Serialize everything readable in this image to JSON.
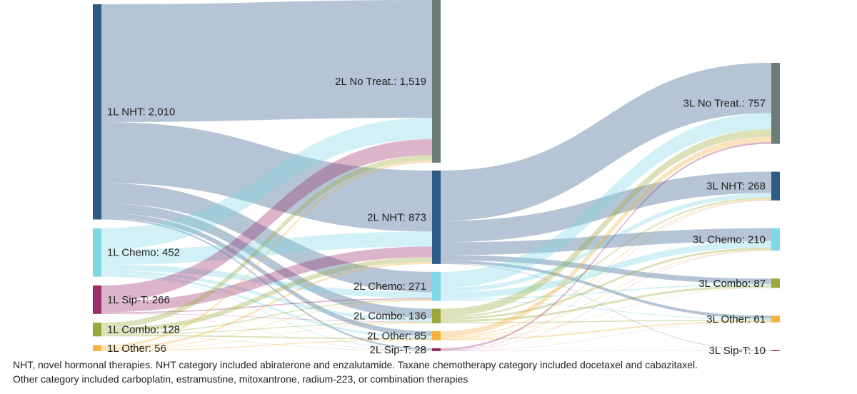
{
  "chart_data": {
    "type": "sankey",
    "stages": [
      [
        {
          "label": "1L NHT: 2,010",
          "value": 2010,
          "color": "#2e5a87"
        },
        {
          "label": "1L Chemo: 452",
          "value": 452,
          "color": "#7fd8e6"
        },
        {
          "label": "1L Sip-T: 266",
          "value": 266,
          "color": "#9c2a6b"
        },
        {
          "label": "1L Combo: 128",
          "value": 128,
          "color": "#9aa83a"
        },
        {
          "label": "1L Other: 56",
          "value": 56,
          "color": "#f3b33d"
        }
      ],
      [
        {
          "label": "2L No Treat.: 1,519",
          "value": 1519,
          "color": "#6d7b79"
        },
        {
          "label": "2L NHT: 873",
          "value": 873,
          "color": "#2e5a87"
        },
        {
          "label": "2L Chemo: 271",
          "value": 271,
          "color": "#7fd8e6"
        },
        {
          "label": "2L Combo: 136",
          "value": 136,
          "color": "#9aa83a"
        },
        {
          "label": "2L Other: 85",
          "value": 85,
          "color": "#f3b33d"
        },
        {
          "label": "2L Sip-T: 28",
          "value": 28,
          "color": "#9c2a6b"
        }
      ],
      [
        {
          "label": "3L No Treat.: 757",
          "value": 757,
          "color": "#6d7b79"
        },
        {
          "label": "3L NHT: 268",
          "value": 268,
          "color": "#2e5a87"
        },
        {
          "label": "3L Chemo: 210",
          "value": 210,
          "color": "#7fd8e6"
        },
        {
          "label": "3L Combo: 87",
          "value": 87,
          "color": "#9aa83a"
        },
        {
          "label": "3L Other: 61",
          "value": 61,
          "color": "#f3b33d"
        },
        {
          "label": "3L Sip-T: 10",
          "value": 10,
          "color": "#9c2a6b"
        }
      ]
    ],
    "flows": [
      [
        {
          "from": 0,
          "to": 0,
          "value": 1100
        },
        {
          "from": 0,
          "to": 1,
          "value": 570
        },
        {
          "from": 0,
          "to": 2,
          "value": 190
        },
        {
          "from": 0,
          "to": 3,
          "value": 90
        },
        {
          "from": 0,
          "to": 4,
          "value": 45
        },
        {
          "from": 0,
          "to": 5,
          "value": 15
        },
        {
          "from": 1,
          "to": 0,
          "value": 200
        },
        {
          "from": 1,
          "to": 1,
          "value": 140
        },
        {
          "from": 1,
          "to": 2,
          "value": 55
        },
        {
          "from": 1,
          "to": 3,
          "value": 30
        },
        {
          "from": 1,
          "to": 4,
          "value": 20
        },
        {
          "from": 1,
          "to": 5,
          "value": 7
        },
        {
          "from": 2,
          "to": 0,
          "value": 150
        },
        {
          "from": 2,
          "to": 1,
          "value": 100
        },
        {
          "from": 2,
          "to": 2,
          "value": 10
        },
        {
          "from": 2,
          "to": 3,
          "value": 4
        },
        {
          "from": 2,
          "to": 5,
          "value": 2
        },
        {
          "from": 3,
          "to": 0,
          "value": 50
        },
        {
          "from": 3,
          "to": 1,
          "value": 45
        },
        {
          "from": 3,
          "to": 2,
          "value": 10
        },
        {
          "from": 3,
          "to": 3,
          "value": 8
        },
        {
          "from": 3,
          "to": 4,
          "value": 12
        },
        {
          "from": 3,
          "to": 5,
          "value": 3
        },
        {
          "from": 4,
          "to": 0,
          "value": 19
        },
        {
          "from": 4,
          "to": 1,
          "value": 18
        },
        {
          "from": 4,
          "to": 2,
          "value": 6
        },
        {
          "from": 4,
          "to": 3,
          "value": 4
        },
        {
          "from": 4,
          "to": 4,
          "value": 8
        },
        {
          "from": 4,
          "to": 5,
          "value": 1
        }
      ],
      [
        {
          "from": 1,
          "to": 0,
          "value": 470
        },
        {
          "from": 1,
          "to": 1,
          "value": 200
        },
        {
          "from": 1,
          "to": 2,
          "value": 120
        },
        {
          "from": 1,
          "to": 3,
          "value": 50
        },
        {
          "from": 1,
          "to": 4,
          "value": 28
        },
        {
          "from": 1,
          "to": 5,
          "value": 5
        },
        {
          "from": 2,
          "to": 0,
          "value": 150
        },
        {
          "from": 2,
          "to": 1,
          "value": 40
        },
        {
          "from": 2,
          "to": 2,
          "value": 60
        },
        {
          "from": 2,
          "to": 3,
          "value": 12
        },
        {
          "from": 2,
          "to": 4,
          "value": 8
        },
        {
          "from": 2,
          "to": 5,
          "value": 1
        },
        {
          "from": 3,
          "to": 0,
          "value": 70
        },
        {
          "from": 3,
          "to": 1,
          "value": 15
        },
        {
          "from": 3,
          "to": 2,
          "value": 20
        },
        {
          "from": 3,
          "to": 3,
          "value": 20
        },
        {
          "from": 3,
          "to": 4,
          "value": 10
        },
        {
          "from": 3,
          "to": 5,
          "value": 1
        },
        {
          "from": 4,
          "to": 0,
          "value": 50
        },
        {
          "from": 4,
          "to": 1,
          "value": 10
        },
        {
          "from": 4,
          "to": 2,
          "value": 7
        },
        {
          "from": 4,
          "to": 3,
          "value": 4
        },
        {
          "from": 4,
          "to": 4,
          "value": 13
        },
        {
          "from": 4,
          "to": 5,
          "value": 1
        },
        {
          "from": 5,
          "to": 0,
          "value": 17
        },
        {
          "from": 5,
          "to": 1,
          "value": 3
        },
        {
          "from": 5,
          "to": 2,
          "value": 3
        },
        {
          "from": 5,
          "to": 3,
          "value": 1
        },
        {
          "from": 5,
          "to": 4,
          "value": 2
        },
        {
          "from": 5,
          "to": 5,
          "value": 2
        }
      ]
    ],
    "footnote": [
      "NHT, novel hormonal therapies. NHT category included abiraterone and enzalutamide. Taxane chemotherapy category included docetaxel and cabazitaxel.",
      "Other category included carboplatin, estramustine, mitoxantrone, radium-223, or combination therapies"
    ]
  }
}
